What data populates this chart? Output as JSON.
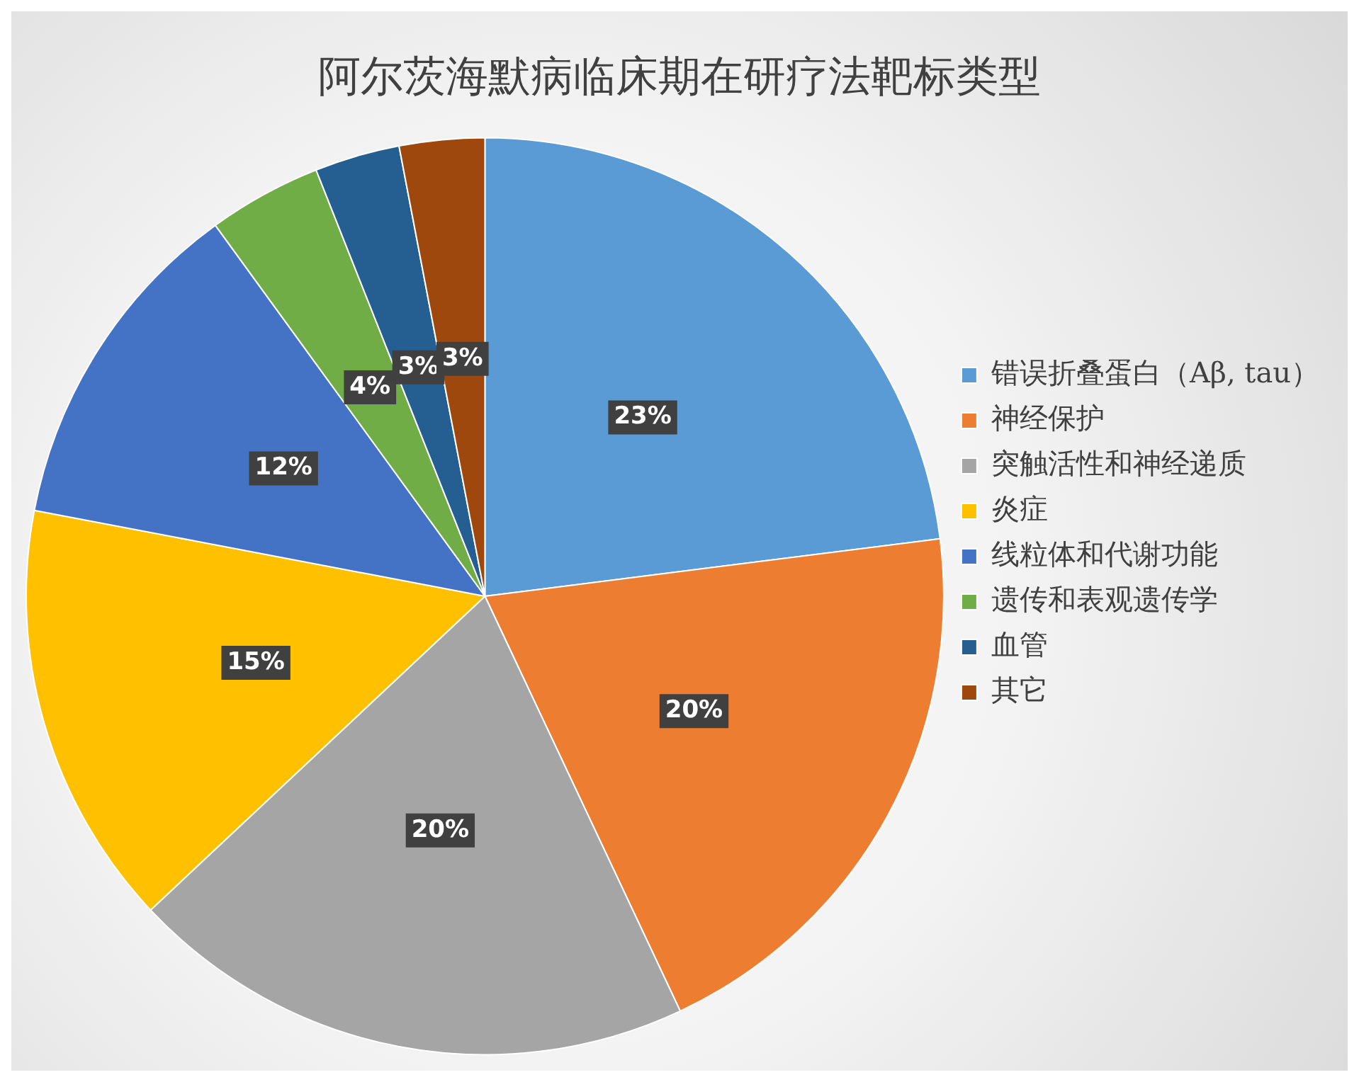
{
  "chart_data": {
    "type": "pie",
    "title": "阿尔茨海默病临床期在研疗法靶标类型",
    "categories": [
      "错误折叠蛋白（Aβ, tau）",
      "神经保护",
      "突触活性和神经递质",
      "炎症",
      "线粒体和代谢功能",
      "遗传和表观遗传学",
      "血管",
      "其它"
    ],
    "values": [
      23,
      20,
      20,
      15,
      12,
      4,
      3,
      3
    ],
    "colors": [
      "#5b9bd5",
      "#ed7d31",
      "#a5a5a5",
      "#ffc000",
      "#4472c4",
      "#70ad47",
      "#255e91",
      "#9e480e"
    ],
    "value_labels": [
      "23%",
      "20%",
      "20%",
      "15%",
      "12%",
      "4%",
      "3%",
      "3%"
    ],
    "legend": "right"
  }
}
